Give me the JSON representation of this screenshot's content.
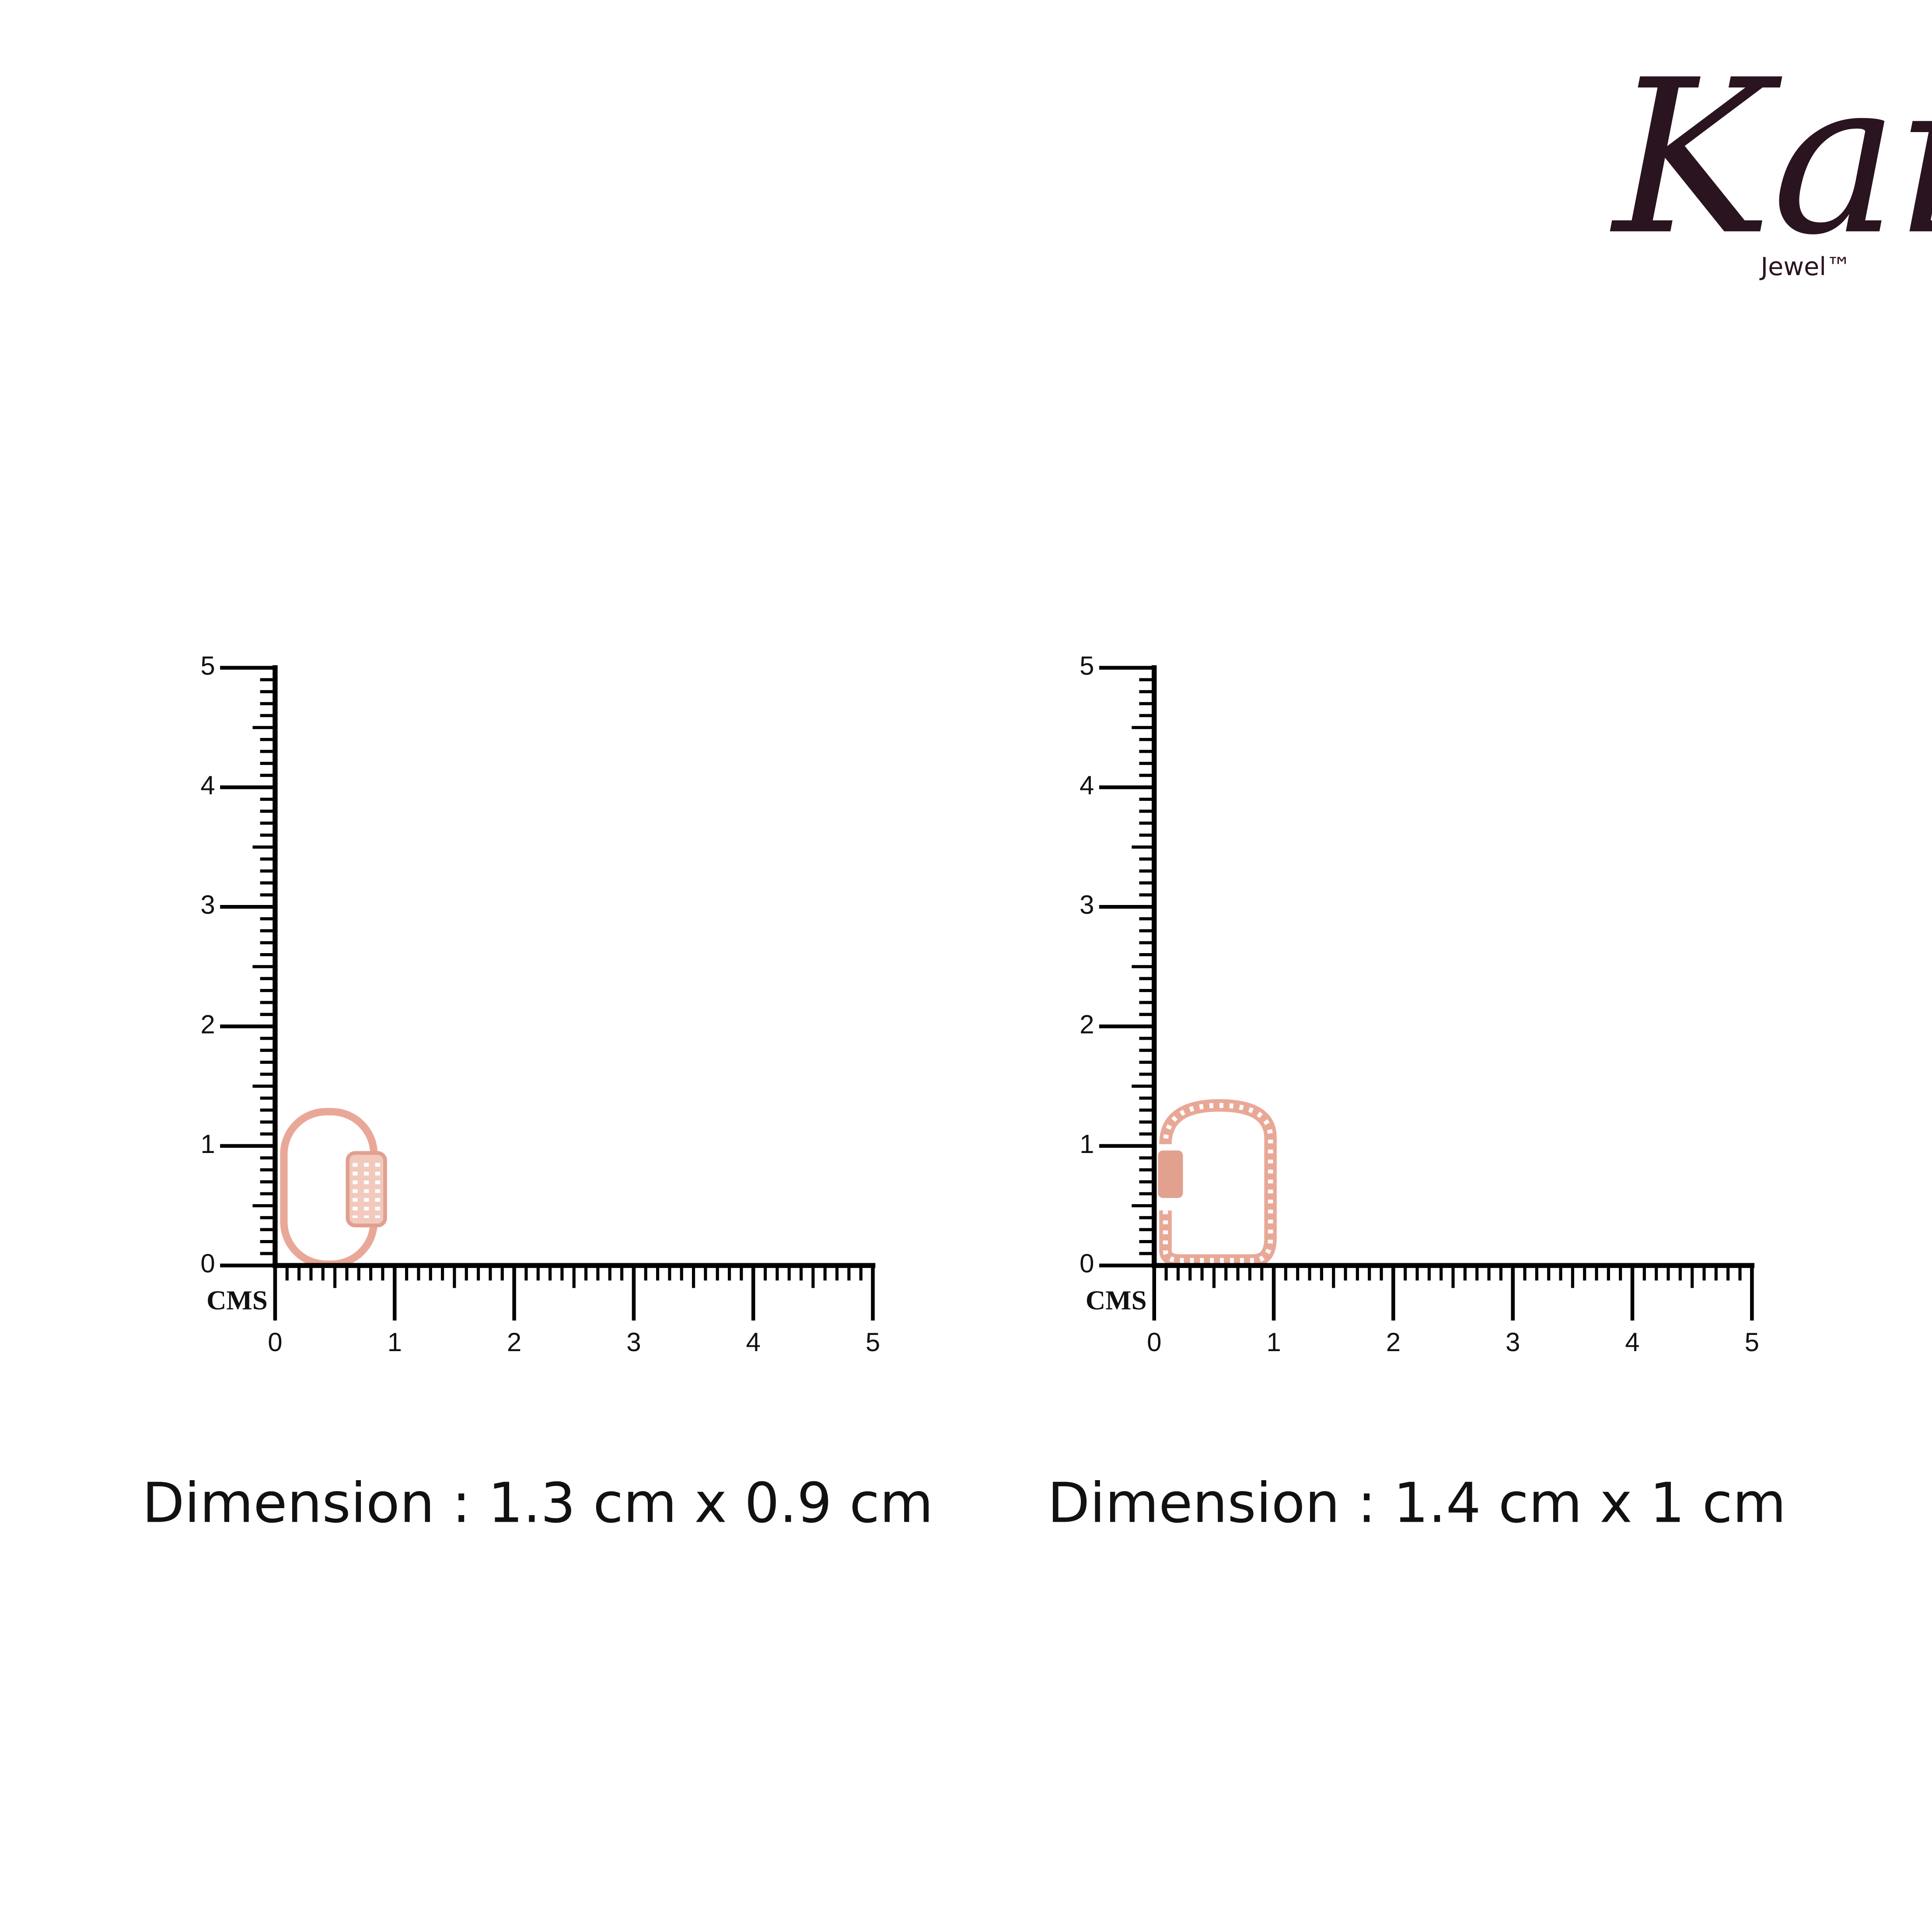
{
  "logo": {
    "brand": "Kai",
    "sub": "Jewel™"
  },
  "panels": [
    {
      "unit": "CMS",
      "y_labels": [
        "0",
        "1",
        "2",
        "3",
        "4",
        "5"
      ],
      "x_labels": [
        "0",
        "1",
        "2",
        "3",
        "4",
        "5"
      ],
      "caption": "Dimension : 1.3 cm x 0.9 cm"
    },
    {
      "unit": "CMS",
      "y_labels": [
        "0",
        "1",
        "2",
        "3",
        "4",
        "5"
      ],
      "x_labels": [
        "0",
        "1",
        "2",
        "3",
        "4",
        "5"
      ],
      "caption": "Dimension : 1.4 cm x 1 cm"
    }
  ]
}
